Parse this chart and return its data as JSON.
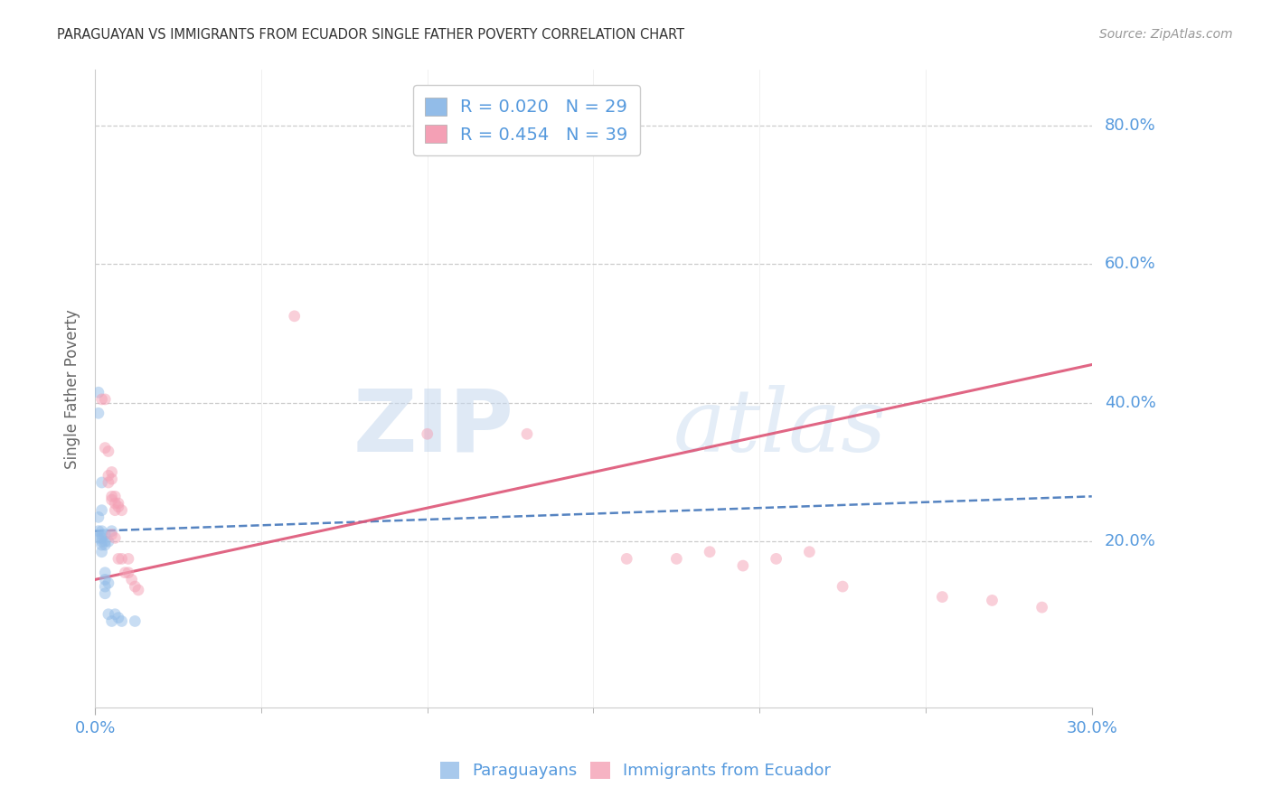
{
  "title": "PARAGUAYAN VS IMMIGRANTS FROM ECUADOR SINGLE FATHER POVERTY CORRELATION CHART",
  "source": "Source: ZipAtlas.com",
  "ylabel": "Single Father Poverty",
  "xlim": [
    0.0,
    0.3
  ],
  "ylim": [
    -0.04,
    0.88
  ],
  "paraguayan_x": [
    0.001,
    0.001,
    0.001,
    0.001,
    0.001,
    0.002,
    0.002,
    0.002,
    0.002,
    0.002,
    0.002,
    0.002,
    0.002,
    0.003,
    0.003,
    0.003,
    0.003,
    0.003,
    0.003,
    0.003,
    0.004,
    0.004,
    0.004,
    0.005,
    0.005,
    0.006,
    0.007,
    0.008,
    0.012
  ],
  "paraguayan_y": [
    0.415,
    0.385,
    0.235,
    0.215,
    0.205,
    0.285,
    0.245,
    0.215,
    0.21,
    0.205,
    0.2,
    0.195,
    0.185,
    0.21,
    0.2,
    0.195,
    0.155,
    0.145,
    0.135,
    0.125,
    0.2,
    0.14,
    0.095,
    0.215,
    0.085,
    0.095,
    0.09,
    0.085,
    0.085
  ],
  "ecuador_x": [
    0.002,
    0.003,
    0.003,
    0.004,
    0.004,
    0.004,
    0.005,
    0.005,
    0.005,
    0.005,
    0.005,
    0.006,
    0.006,
    0.006,
    0.006,
    0.007,
    0.007,
    0.007,
    0.008,
    0.008,
    0.009,
    0.01,
    0.01,
    0.011,
    0.012,
    0.013,
    0.06,
    0.1,
    0.13,
    0.16,
    0.175,
    0.185,
    0.195,
    0.205,
    0.215,
    0.225,
    0.255,
    0.27,
    0.285
  ],
  "ecuador_y": [
    0.405,
    0.405,
    0.335,
    0.33,
    0.295,
    0.285,
    0.3,
    0.29,
    0.265,
    0.26,
    0.21,
    0.265,
    0.255,
    0.245,
    0.205,
    0.255,
    0.25,
    0.175,
    0.245,
    0.175,
    0.155,
    0.175,
    0.155,
    0.145,
    0.135,
    0.13,
    0.525,
    0.355,
    0.355,
    0.175,
    0.175,
    0.185,
    0.165,
    0.175,
    0.185,
    0.135,
    0.12,
    0.115,
    0.105
  ],
  "blue_line_x": [
    0.0,
    0.3
  ],
  "blue_line_y": [
    0.215,
    0.265
  ],
  "pink_line_x": [
    0.0,
    0.3
  ],
  "pink_line_y": [
    0.145,
    0.455
  ],
  "watermark_zip": "ZIP",
  "watermark_atlas": "atlas",
  "marker_size": 85,
  "alpha": 0.5,
  "grid_color": "#cccccc",
  "blue_color": "#92bce8",
  "pink_color": "#f4a0b5",
  "blue_line_color": "#4477bb",
  "pink_line_color": "#dd5577",
  "axis_label_color": "#5599dd",
  "title_color": "#333333",
  "background_color": "#ffffff",
  "right_y_ticks": [
    0.2,
    0.4,
    0.6,
    0.8
  ],
  "right_y_labels": [
    "20.0%",
    "40.0%",
    "60.0%",
    "80.0%"
  ]
}
